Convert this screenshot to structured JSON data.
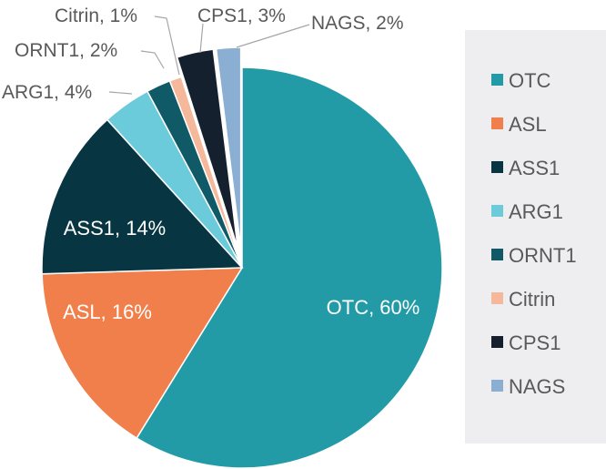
{
  "chart_data": {
    "type": "pie",
    "title": "",
    "start_angle_deg": 0,
    "direction": "clockwise",
    "legend_position": "right",
    "slices": [
      {
        "label": "OTC",
        "value": 60,
        "data_label": "OTC, 60%",
        "color": "#239BA7",
        "exploded": false
      },
      {
        "label": "ASL",
        "value": 16,
        "data_label": "ASL, 16%",
        "color": "#F07F4B",
        "exploded": false
      },
      {
        "label": "ASS1",
        "value": 14,
        "data_label": "ASS1, 14%",
        "color": "#073642",
        "exploded": false
      },
      {
        "label": "ARG1",
        "value": 4,
        "data_label": "ARG1, 4%",
        "color": "#6BCBDA",
        "exploded": false
      },
      {
        "label": "ORNT1",
        "value": 2,
        "data_label": "ORNT1, 2%",
        "color": "#0F5A66",
        "exploded": false
      },
      {
        "label": "Citrin",
        "value": 1,
        "data_label": "Citrin, 1%",
        "color": "#F6B89A",
        "exploded": false
      },
      {
        "label": "CPS1",
        "value": 3,
        "data_label": "CPS1, 3%",
        "color": "#15202E",
        "exploded": true
      },
      {
        "label": "NAGS",
        "value": 2,
        "data_label": "NAGS, 2%",
        "color": "#8BAED3",
        "exploded": true
      }
    ],
    "legend_background": "#EEEEF0",
    "label_text_color": "#595959"
  }
}
